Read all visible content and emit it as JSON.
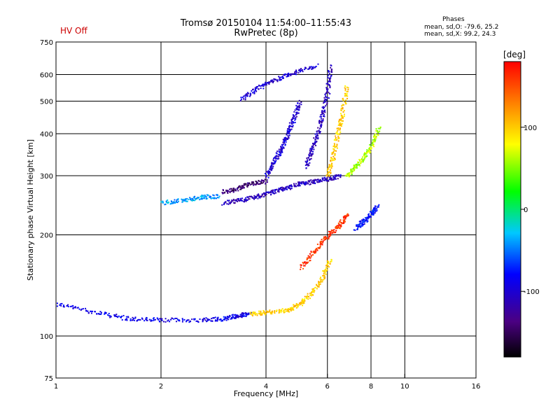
{
  "header": {
    "title_line1": "Tromsø 20150104 11:54:00–11:55:43",
    "title_line2": "RwPretec (8p)",
    "hv_status": "HV Off",
    "hv_status_color": "#cc0000"
  },
  "phase_stats": {
    "title": "Phases",
    "o_mode": "mean, sd,O:  -79.6, 25.2",
    "x_mode": "mean, sd,X:  99.2, 24.3"
  },
  "colorbar": {
    "label": "[deg]",
    "ticks": [
      {
        "value": 100,
        "label": "100"
      },
      {
        "value": 0,
        "label": "0"
      },
      {
        "value": -100,
        "label": "-100"
      }
    ],
    "range": [
      -180,
      180
    ]
  },
  "chart_data": {
    "type": "scatter",
    "title": "Tromsø 20150104 11:54:00–11:55:43",
    "subtitle": "RwPretec (8p)",
    "xlabel": "Frequency [MHz]",
    "ylabel": "Stationary phase Virtual Height [km]",
    "xscale": "log",
    "yscale": "log",
    "xlim": [
      1,
      16
    ],
    "ylim": [
      75,
      750
    ],
    "x_ticks": [
      "1",
      "2",
      "4",
      "6",
      "8",
      "10",
      "16"
    ],
    "x_tick_values": [
      1,
      2,
      4,
      6,
      8,
      10,
      16
    ],
    "y_ticks": [
      "75",
      "100",
      "200",
      "300",
      "400",
      "500",
      "600",
      "750"
    ],
    "y_tick_values": [
      75,
      100,
      200,
      300,
      400,
      500,
      600,
      750
    ],
    "grid_x": [
      2,
      4,
      6,
      8,
      10
    ],
    "grid_y": [
      100,
      200,
      300,
      400,
      500,
      600
    ],
    "traces": [
      {
        "x": [
          1.0,
          1.3,
          1.6,
          2.0,
          2.6,
          3.0,
          3.3,
          3.6
        ],
        "y": [
          125,
          118,
          113,
          112,
          112,
          113,
          115,
          117
        ],
        "phase": -90
      },
      {
        "x": [
          3.6,
          4.0,
          4.6,
          5.0,
          5.4,
          5.8,
          6.1
        ],
        "y": [
          117,
          118,
          120,
          125,
          135,
          150,
          170
        ],
        "phase": 100
      },
      {
        "x": [
          5.0,
          5.5,
          6.0,
          6.5,
          6.8
        ],
        "y": [
          160,
          180,
          200,
          215,
          230
        ],
        "phase": 160
      },
      {
        "x": [
          7.2,
          7.6,
          8.0,
          8.3
        ],
        "y": [
          210,
          220,
          232,
          245
        ],
        "phase": -80
      },
      {
        "x": [
          2.0,
          2.3,
          2.6,
          2.9
        ],
        "y": [
          250,
          255,
          260,
          262
        ],
        "phase": -40
      },
      {
        "x": [
          3.0,
          3.4,
          3.8,
          4.2,
          4.6,
          5.0,
          5.5,
          6.0,
          6.5
        ],
        "y": [
          250,
          255,
          262,
          270,
          278,
          285,
          290,
          295,
          300
        ],
        "phase": -110
      },
      {
        "x": [
          4.0,
          4.2,
          4.4,
          4.6,
          4.8,
          5.0
        ],
        "y": [
          300,
          330,
          360,
          400,
          450,
          500
        ],
        "phase": -100
      },
      {
        "x": [
          5.2,
          5.4,
          5.6,
          5.8,
          6.0,
          6.1
        ],
        "y": [
          320,
          360,
          400,
          460,
          540,
          640
        ],
        "phase": -110
      },
      {
        "x": [
          6.0,
          6.2,
          6.4,
          6.6,
          6.8
        ],
        "y": [
          300,
          340,
          400,
          460,
          560
        ],
        "phase": 100
      },
      {
        "x": [
          6.8,
          7.2,
          7.6,
          8.0,
          8.4
        ],
        "y": [
          300,
          320,
          340,
          370,
          420
        ],
        "phase": 60
      },
      {
        "x": [
          3.4,
          3.8,
          4.2,
          4.8,
          5.6
        ],
        "y": [
          510,
          550,
          580,
          610,
          640
        ],
        "phase": -100
      },
      {
        "x": [
          3.0,
          3.3,
          3.6,
          4.0
        ],
        "y": [
          270,
          275,
          285,
          290
        ],
        "phase": -140
      }
    ]
  }
}
